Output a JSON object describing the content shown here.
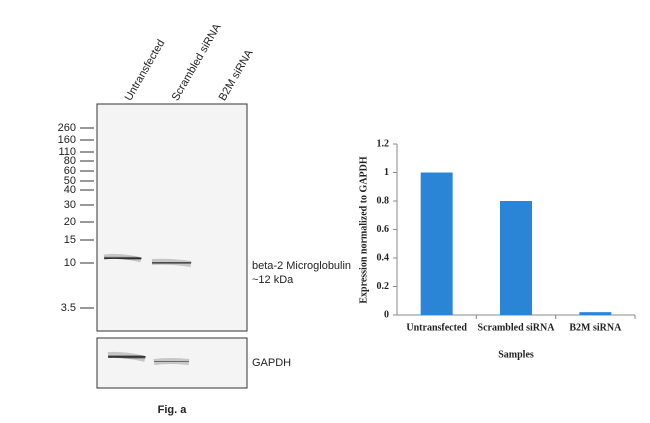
{
  "chart_data": {
    "type": "bar",
    "categories": [
      "Untransfected",
      "Scrambled siRNA",
      "B2M siRNA"
    ],
    "values": [
      1,
      0.8,
      0.02
    ],
    "color": "#2b85d6",
    "ylim": [
      0,
      1.2
    ],
    "yticks": [
      0,
      0.2,
      0.4,
      0.6,
      0.8,
      1,
      1.2
    ],
    "y_label": "Expression normalized to GAPDH",
    "x_label": "Samples"
  },
  "blot": {
    "lanes": [
      "Untransfected",
      "Scrambled siRNA",
      "B2M siRNA"
    ],
    "markers": [
      "260",
      "160",
      "110",
      "80",
      "60",
      "50",
      "40",
      "30",
      "20",
      "15",
      "10",
      "3.5"
    ],
    "band_label": [
      "beta-2 Microglobulin",
      "~12 kDa"
    ],
    "loading_label": "GAPDH",
    "caption": "Fig. a"
  }
}
